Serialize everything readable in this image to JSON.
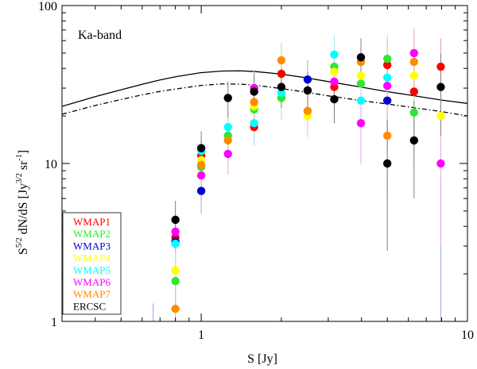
{
  "chart_data": {
    "type": "scatter",
    "title": "",
    "annotation": "Ka-band",
    "xlabel": "S [Jy]",
    "ylabel_parts": {
      "base": "S",
      "sup1": "5/2",
      "mid": " dN/dS [Jy",
      "sup2": "3/2",
      "mid2": " sr",
      "sup3": "-1",
      "end": "]"
    },
    "x_scale": "log",
    "y_scale": "log",
    "xlim": [
      0.3,
      10
    ],
    "ylim": [
      1,
      100
    ],
    "x_tick_labels": [
      {
        "value": 1,
        "label": "1"
      },
      {
        "value": 10,
        "label": "10"
      }
    ],
    "y_tick_labels": [
      {
        "value": 1,
        "label": "1"
      },
      {
        "value": 10,
        "label": "10"
      },
      {
        "value": 100,
        "label": "100"
      }
    ],
    "legend_position": "bottom-left",
    "series": [
      {
        "name": "WMAP1",
        "color": "#ff0000",
        "lowlight": "#d9a0a0",
        "points": [
          {
            "x": 0.8,
            "y": 3.4,
            "lo": 2.5,
            "hi": 4.4
          },
          {
            "x": 1.0,
            "y": 11.2,
            "lo": 8.5,
            "hi": 14.0
          },
          {
            "x": 1.58,
            "y": 17.0,
            "lo": 13.0,
            "hi": 22.0
          },
          {
            "x": 2.0,
            "y": 37.0,
            "lo": 29.0,
            "hi": 46.0
          },
          {
            "x": 3.16,
            "y": 30.5,
            "lo": 22.0,
            "hi": 40.0
          },
          {
            "x": 5.0,
            "y": 42.0,
            "lo": 28.0,
            "hi": 60.0
          },
          {
            "x": 6.3,
            "y": 28.5,
            "lo": 16.0,
            "hi": 45.0
          },
          {
            "x": 7.94,
            "y": 41.0,
            "lo": 22.0,
            "hi": 62.0
          }
        ]
      },
      {
        "name": "WMAP2",
        "color": "#2ee82e",
        "lowlight": "#9fe89f",
        "points": [
          {
            "x": 0.8,
            "y": 1.8,
            "lo": 1.2,
            "hi": 2.5
          },
          {
            "x": 1.0,
            "y": 9.5,
            "lo": 7.0,
            "hi": 12.0
          },
          {
            "x": 1.26,
            "y": 15.0,
            "lo": 11.0,
            "hi": 20.0
          },
          {
            "x": 1.58,
            "y": 22.0,
            "lo": 16.0,
            "hi": 28.0
          },
          {
            "x": 2.0,
            "y": 26.0,
            "lo": 19.0,
            "hi": 34.0
          },
          {
            "x": 3.16,
            "y": 41.0,
            "lo": 30.0,
            "hi": 55.0
          },
          {
            "x": 3.98,
            "y": 32.0,
            "lo": 22.0,
            "hi": 44.0
          },
          {
            "x": 5.0,
            "y": 46.0,
            "lo": 28.0,
            "hi": 65.0
          },
          {
            "x": 6.3,
            "y": 21.0,
            "lo": 10.0,
            "hi": 38.0
          }
        ]
      },
      {
        "name": "WMAP3",
        "color": "#0000d0",
        "lowlight": "#a0a0e0",
        "points": [
          {
            "x": 0.8,
            "y": 3.2,
            "lo": 1.2,
            "hi": 4.2
          },
          {
            "x": 1.0,
            "y": 6.7,
            "lo": 4.8,
            "hi": 8.8
          },
          {
            "x": 1.58,
            "y": 30.0,
            "lo": 22.0,
            "hi": 38.0
          },
          {
            "x": 2.51,
            "y": 34.0,
            "lo": 25.0,
            "hi": 45.0
          },
          {
            "x": 5.0,
            "y": 25.0,
            "lo": 15.0,
            "hi": 40.0
          }
        ]
      },
      {
        "name": "WMAP4",
        "color": "#ffff00",
        "lowlight": "#eeeea0",
        "points": [
          {
            "x": 0.8,
            "y": 2.1,
            "lo": 1.4,
            "hi": 2.9
          },
          {
            "x": 1.0,
            "y": 10.5,
            "lo": 8.0,
            "hi": 13.5
          },
          {
            "x": 1.58,
            "y": 23.0,
            "lo": 17.0,
            "hi": 30.0
          },
          {
            "x": 2.51,
            "y": 20.0,
            "lo": 14.0,
            "hi": 28.0
          },
          {
            "x": 3.16,
            "y": 38.0,
            "lo": 28.0,
            "hi": 52.0
          },
          {
            "x": 3.98,
            "y": 36.0,
            "lo": 24.0,
            "hi": 50.0
          },
          {
            "x": 6.3,
            "y": 36.0,
            "lo": 20.0,
            "hi": 58.0
          },
          {
            "x": 7.94,
            "y": 20.0,
            "lo": 9.0,
            "hi": 36.0
          }
        ]
      },
      {
        "name": "WMAP5",
        "color": "#00ffff",
        "lowlight": "#a0eeee",
        "points": [
          {
            "x": 0.8,
            "y": 3.1,
            "lo": 2.2,
            "hi": 4.1
          },
          {
            "x": 1.0,
            "y": 12.0,
            "lo": 9.0,
            "hi": 15.0
          },
          {
            "x": 1.26,
            "y": 17.0,
            "lo": 12.5,
            "hi": 22.0
          },
          {
            "x": 1.58,
            "y": 18.0,
            "lo": 13.0,
            "hi": 24.0
          },
          {
            "x": 2.0,
            "y": 28.0,
            "lo": 21.0,
            "hi": 37.0
          },
          {
            "x": 3.16,
            "y": 49.0,
            "lo": 36.0,
            "hi": 65.0
          },
          {
            "x": 3.98,
            "y": 25.0,
            "lo": 16.0,
            "hi": 36.0
          },
          {
            "x": 5.0,
            "y": 35.0,
            "lo": 20.0,
            "hi": 52.0
          }
        ]
      },
      {
        "name": "WMAP6",
        "color": "#ff00ff",
        "lowlight": "#eea0ee",
        "points": [
          {
            "x": 0.8,
            "y": 3.7,
            "lo": 2.7,
            "hi": 4.8
          },
          {
            "x": 1.0,
            "y": 8.4,
            "lo": 6.2,
            "hi": 11.0
          },
          {
            "x": 1.26,
            "y": 11.5,
            "lo": 8.5,
            "hi": 15.0
          },
          {
            "x": 1.58,
            "y": 30.0,
            "lo": 22.0,
            "hi": 39.0
          },
          {
            "x": 2.51,
            "y": 29.0,
            "lo": 21.0,
            "hi": 39.0
          },
          {
            "x": 3.16,
            "y": 33.0,
            "lo": 23.0,
            "hi": 45.0
          },
          {
            "x": 3.98,
            "y": 18.0,
            "lo": 10.0,
            "hi": 28.0
          },
          {
            "x": 5.0,
            "y": 31.0,
            "lo": 18.0,
            "hi": 48.0
          },
          {
            "x": 6.3,
            "y": 50.0,
            "lo": 30.0,
            "hi": 72.0
          },
          {
            "x": 7.94,
            "y": 10.0,
            "lo": 3.0,
            "hi": 22.0
          }
        ]
      },
      {
        "name": "WMAP7",
        "color": "#ff8c00",
        "lowlight": "#f0c090",
        "points": [
          {
            "x": 0.8,
            "y": 1.2,
            "lo": 0.8,
            "hi": 1.7
          },
          {
            "x": 1.0,
            "y": 9.8,
            "lo": 7.3,
            "hi": 12.5
          },
          {
            "x": 1.26,
            "y": 14.0,
            "lo": 10.0,
            "hi": 18.5
          },
          {
            "x": 1.58,
            "y": 24.5,
            "lo": 18.0,
            "hi": 32.0
          },
          {
            "x": 2.0,
            "y": 45.0,
            "lo": 34.0,
            "hi": 58.0
          },
          {
            "x": 2.51,
            "y": 21.5,
            "lo": 15.0,
            "hi": 29.0
          },
          {
            "x": 3.98,
            "y": 44.0,
            "lo": 30.0,
            "hi": 60.0
          },
          {
            "x": 5.0,
            "y": 15.0,
            "lo": 6.0,
            "hi": 28.0
          },
          {
            "x": 6.3,
            "y": 44.0,
            "lo": 26.0,
            "hi": 65.0
          }
        ]
      },
      {
        "name": "ERCSC",
        "color": "#000000",
        "lowlight": "#808080",
        "points": [
          {
            "x": 0.8,
            "y": 4.4,
            "lo": 3.2,
            "hi": 5.8
          },
          {
            "x": 1.0,
            "y": 12.5,
            "lo": 9.5,
            "hi": 16.0
          },
          {
            "x": 1.26,
            "y": 26.0,
            "lo": 19.5,
            "hi": 33.0
          },
          {
            "x": 1.58,
            "y": 28.5,
            "lo": 21.0,
            "hi": 37.0
          },
          {
            "x": 2.0,
            "y": 30.5,
            "lo": 22.5,
            "hi": 40.0
          },
          {
            "x": 2.51,
            "y": 29.0,
            "lo": 21.0,
            "hi": 38.0
          },
          {
            "x": 3.16,
            "y": 25.5,
            "lo": 18.0,
            "hi": 34.0
          },
          {
            "x": 3.98,
            "y": 47.0,
            "lo": 35.0,
            "hi": 62.0
          },
          {
            "x": 5.0,
            "y": 10.0,
            "lo": 2.8,
            "hi": 19.0
          },
          {
            "x": 6.3,
            "y": 14.0,
            "lo": 6.0,
            "hi": 25.0
          },
          {
            "x": 7.94,
            "y": 30.5,
            "lo": 15.0,
            "hi": 50.0
          }
        ]
      }
    ],
    "extra_error_bars": [
      {
        "x": 0.66,
        "lo": 0.4,
        "hi": 1.3,
        "color": "#a0a0e0"
      },
      {
        "x": 0.8,
        "lo": 0.4,
        "hi": 1.3,
        "color": "#f0c090"
      },
      {
        "x": 7.94,
        "lo": 0.4,
        "hi": 8.0,
        "color": "#a0a0e0"
      }
    ],
    "model_curves": [
      {
        "name": "model-solid",
        "style": "solid",
        "x": [
          0.3,
          0.4,
          0.5,
          0.6,
          0.7,
          0.8,
          1.0,
          1.2,
          1.4,
          1.6,
          2.0,
          2.5,
          3.0,
          4.0,
          5.0,
          6.0,
          7.0,
          8.0,
          10.0
        ],
        "y": [
          23.0,
          26.5,
          29.3,
          31.7,
          33.8,
          35.4,
          37.6,
          38.5,
          38.6,
          38.2,
          36.8,
          34.8,
          33.0,
          30.4,
          28.5,
          27.2,
          26.1,
          25.2,
          24.0
        ]
      },
      {
        "name": "model-dashdot",
        "style": "dashdot",
        "x": [
          0.3,
          0.4,
          0.5,
          0.6,
          0.7,
          0.8,
          1.0,
          1.2,
          1.4,
          1.6,
          2.0,
          2.5,
          3.0,
          4.0,
          5.0,
          6.0,
          7.0,
          8.0,
          10.0
        ],
        "y": [
          20.5,
          23.3,
          25.4,
          27.2,
          28.6,
          29.6,
          31.2,
          31.9,
          31.8,
          31.3,
          29.8,
          28.2,
          26.8,
          25.0,
          23.8,
          22.8,
          22.0,
          21.3,
          20.0
        ]
      }
    ]
  }
}
